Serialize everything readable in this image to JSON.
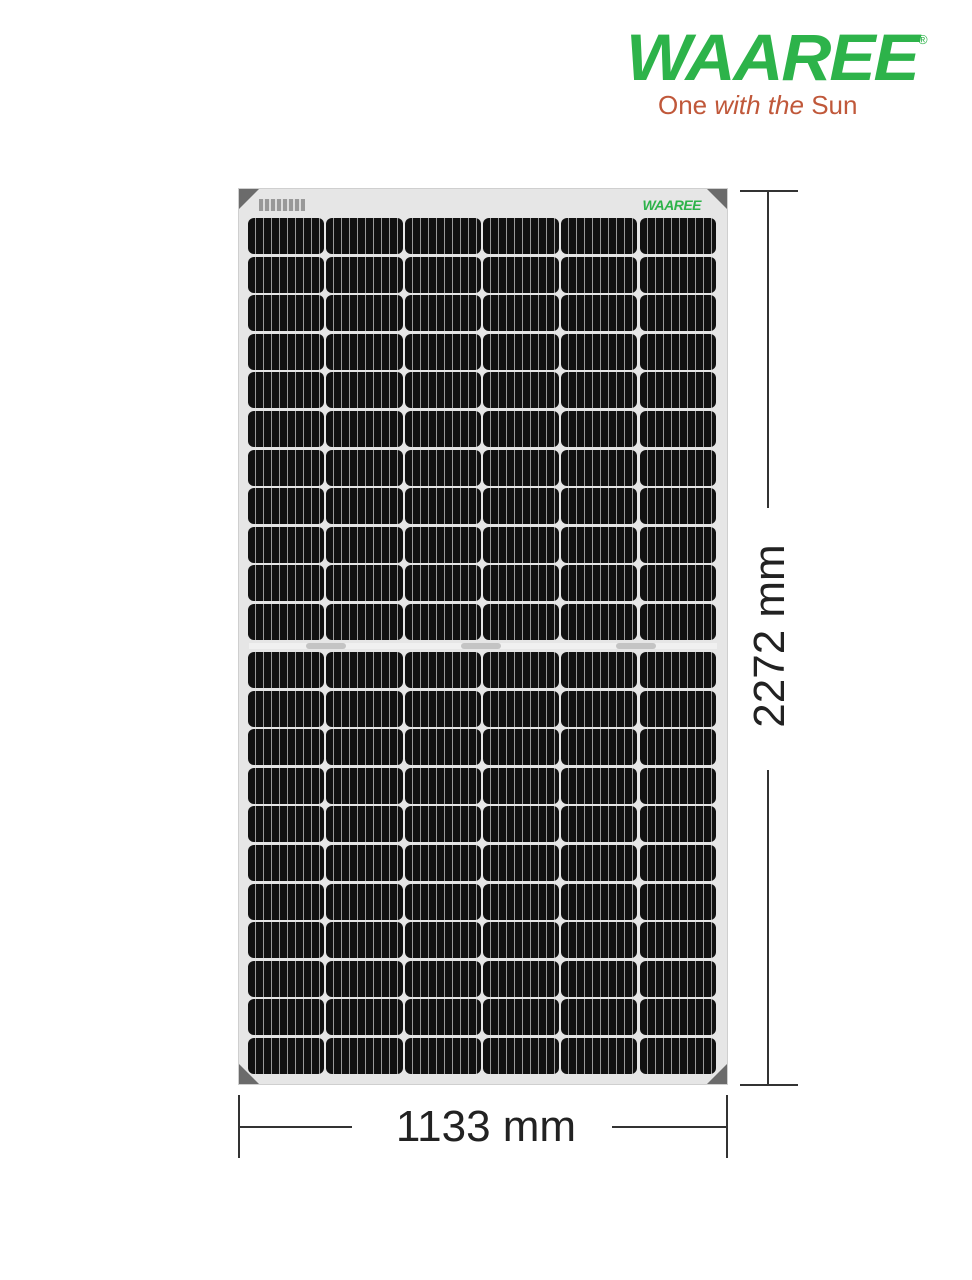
{
  "logo": {
    "brand": "WAAREE",
    "registered": "®",
    "tagline_start": "One ",
    "tagline_italic": "with the",
    "tagline_end": " Sun"
  },
  "panel": {
    "mini_brand": "WAAREE",
    "columns": 6,
    "rows_per_half": 11,
    "brand_color": "#2db34a"
  },
  "dimensions": {
    "height_label": "2272 mm",
    "width_label": "1133 mm"
  }
}
